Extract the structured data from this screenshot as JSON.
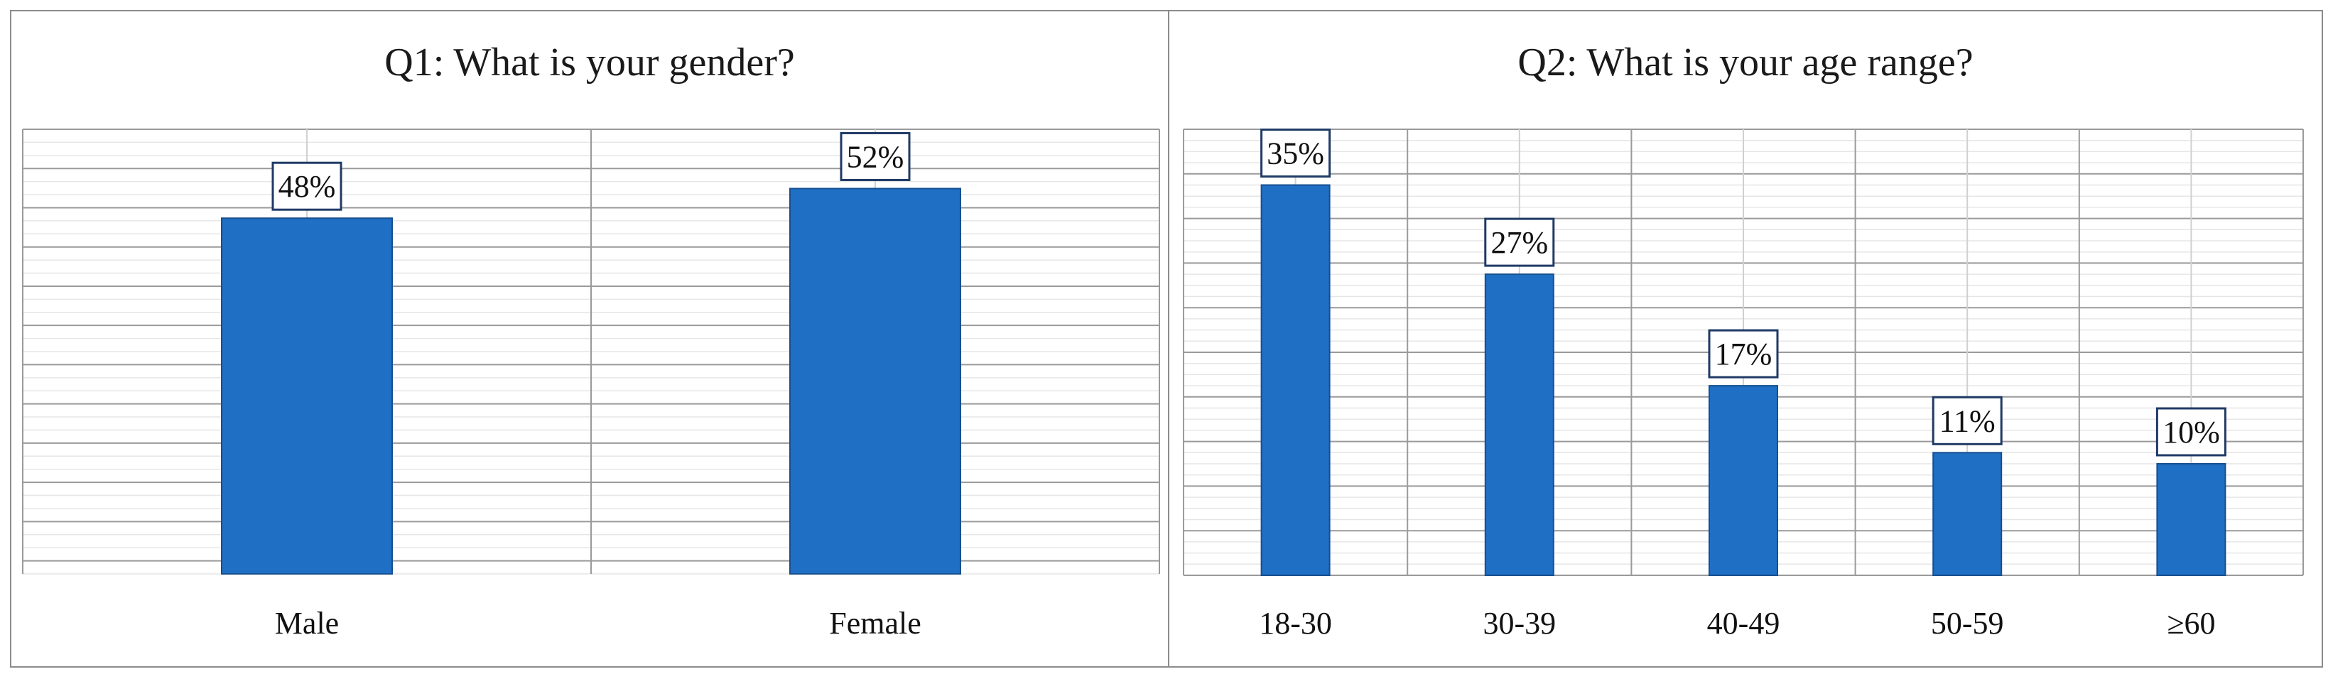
{
  "chart_data": [
    {
      "type": "bar",
      "title": "Q1: What is your gender?",
      "categories": [
        "Male",
        "Female"
      ],
      "values": [
        48,
        52
      ],
      "data_labels": [
        "48%",
        "52%"
      ],
      "ylim": [
        0,
        60
      ],
      "grid": true,
      "bar_color": "#1f6fc5",
      "xlabel": "",
      "ylabel": ""
    },
    {
      "type": "bar",
      "title": "Q2: What is your age range?",
      "categories": [
        "18-30",
        "30-39",
        "40-49",
        "50-59",
        "≥60"
      ],
      "values": [
        35,
        27,
        17,
        11,
        10
      ],
      "data_labels": [
        "35%",
        "27%",
        "17%",
        "11%",
        "10%"
      ],
      "ylim": [
        0,
        40
      ],
      "grid": true,
      "bar_color": "#1f6fc5",
      "xlabel": "",
      "ylabel": ""
    }
  ]
}
